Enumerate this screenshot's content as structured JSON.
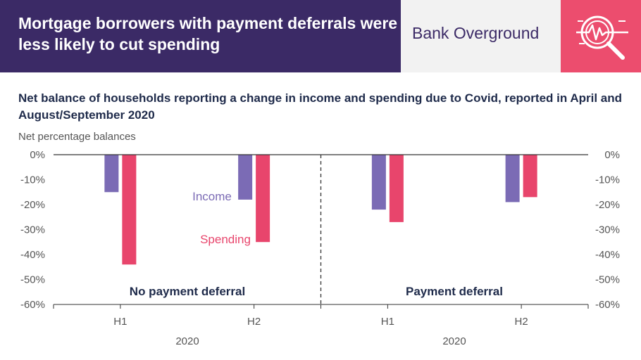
{
  "header": {
    "title": "Mortgage borrowers with payment deferrals were less likely to cut spending",
    "brand": "Bank Overground",
    "icon": "magnifier-chart-icon"
  },
  "colors": {
    "header_bg": "#3b2a66",
    "brand_bg": "#f2f2f2",
    "icon_bg": "#ec4d6e",
    "income": "#7b6bb5",
    "spending": "#e8456c"
  },
  "chart_data": {
    "type": "bar",
    "title": "Net balance of households reporting a change in income and spending due to Covid, reported in April and August/September 2020",
    "ylabel": "Net percentage balances",
    "ylim": [
      -60,
      0
    ],
    "yticks": [
      0,
      -10,
      -20,
      -30,
      -40,
      -50,
      -60
    ],
    "ytick_labels": [
      "0%",
      "-10%",
      "-20%",
      "-30%",
      "-40%",
      "-50%",
      "-60%"
    ],
    "groups": [
      "No payment deferral",
      "Payment deferral"
    ],
    "categories": [
      "H1",
      "H2",
      "H1",
      "H2"
    ],
    "year_labels": [
      "2020",
      "2020"
    ],
    "series": [
      {
        "name": "Income",
        "values": [
          -15,
          -18,
          -22,
          -19
        ]
      },
      {
        "name": "Spending",
        "values": [
          -44,
          -35,
          -27,
          -17
        ]
      }
    ],
    "grid": false,
    "legend": "inline labels"
  }
}
